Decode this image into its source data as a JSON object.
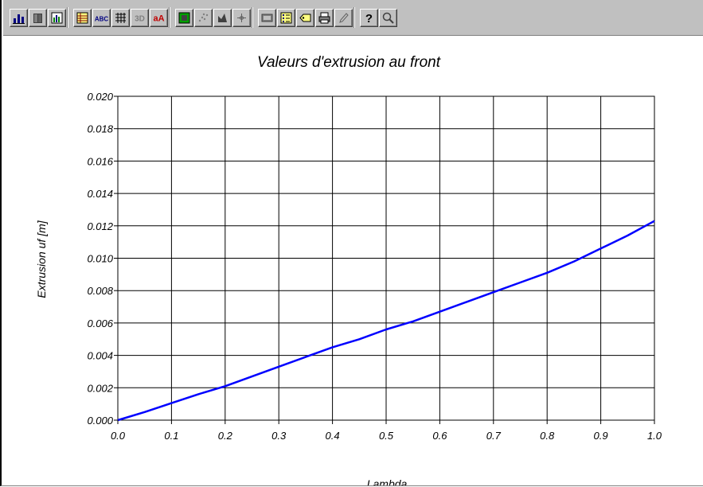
{
  "toolbar": {
    "buttons": [
      {
        "group": 0,
        "icon": "bar-chart-icon"
      },
      {
        "group": 0,
        "icon": "book-icon"
      },
      {
        "group": 0,
        "icon": "bar-grid-icon"
      },
      {
        "group": 1,
        "icon": "data-table-icon"
      },
      {
        "group": 1,
        "icon": "text-abc-icon"
      },
      {
        "group": 1,
        "icon": "grid-lines-icon"
      },
      {
        "group": 1,
        "icon": "3d-view-icon"
      },
      {
        "group": 1,
        "icon": "font-size-icon"
      },
      {
        "group": 2,
        "icon": "color-fill-icon"
      },
      {
        "group": 2,
        "icon": "scatter-points-icon"
      },
      {
        "group": 2,
        "icon": "pointer-tool-icon"
      },
      {
        "group": 2,
        "icon": "crosshair-icon"
      },
      {
        "group": 3,
        "icon": "export-image-icon"
      },
      {
        "group": 3,
        "icon": "legend-icon"
      },
      {
        "group": 3,
        "icon": "label-tag-icon"
      },
      {
        "group": 3,
        "icon": "print-icon"
      },
      {
        "group": 3,
        "icon": "pencil-icon"
      },
      {
        "group": 4,
        "icon": "help-icon"
      },
      {
        "group": 4,
        "icon": "zoom-icon"
      }
    ],
    "abc_text": "ABC",
    "three_d_text": "3D",
    "font_icon_text": "aA"
  },
  "chart_data": {
    "type": "line",
    "title": "Valeurs d'extrusion au front",
    "xlabel": "Lambda",
    "ylabel": "Extrusion uf [m]",
    "xlim": [
      0.0,
      1.0
    ],
    "ylim": [
      0.0,
      0.02
    ],
    "x_ticks": [
      "0.0",
      "0.1",
      "0.2",
      "0.3",
      "0.4",
      "0.5",
      "0.6",
      "0.7",
      "0.8",
      "0.9",
      "1.0"
    ],
    "y_ticks": [
      "0.000",
      "0.002",
      "0.004",
      "0.006",
      "0.008",
      "0.010",
      "0.012",
      "0.014",
      "0.016",
      "0.018",
      "0.020"
    ],
    "grid": true,
    "series": [
      {
        "color": "#0000ff",
        "x": [
          0.0,
          0.05,
          0.1,
          0.15,
          0.2,
          0.25,
          0.3,
          0.35,
          0.4,
          0.45,
          0.5,
          0.55,
          0.6,
          0.65,
          0.7,
          0.75,
          0.8,
          0.85,
          0.9,
          0.95,
          1.0
        ],
        "y": [
          0.0,
          0.0005,
          0.00105,
          0.0016,
          0.0021,
          0.0027,
          0.0033,
          0.0039,
          0.0045,
          0.005,
          0.0056,
          0.0061,
          0.0067,
          0.0073,
          0.0079,
          0.0085,
          0.0091,
          0.0098,
          0.0106,
          0.0114,
          0.0123
        ]
      }
    ]
  }
}
